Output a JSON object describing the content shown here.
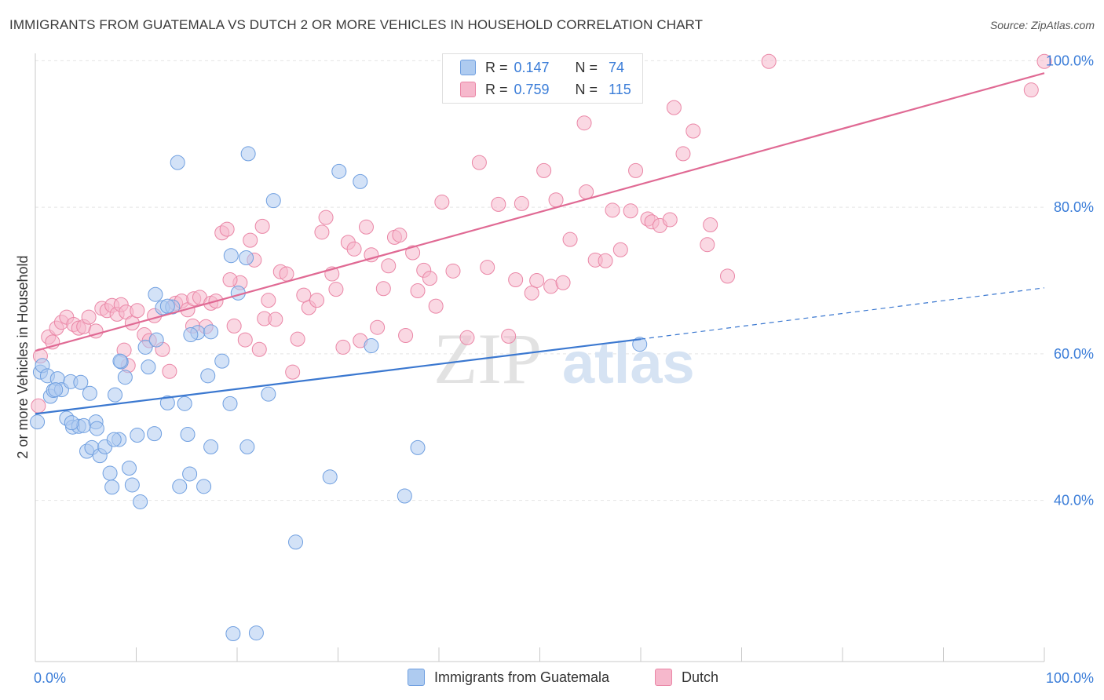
{
  "title": "IMMIGRANTS FROM GUATEMALA VS DUTCH 2 OR MORE VEHICLES IN HOUSEHOLD CORRELATION CHART",
  "source": "Source: ZipAtlas.com",
  "watermark": {
    "zip": "ZIP",
    "atlas": "atlas"
  },
  "colors": {
    "blue_fill": "#aecbf0",
    "blue_stroke": "#6f9fe0",
    "blue_line": "#3b78d0",
    "pink_fill": "#f6b8cc",
    "pink_stroke": "#ea86a6",
    "pink_line": "#e06a94",
    "tick_label": "#3b7dd8",
    "grid": "#e4e4e4"
  },
  "stats": [
    {
      "series": "Immigrants from Guatemala",
      "r_label": "R =",
      "r_value": "0.147",
      "n_label": "N =",
      "n_value": "74"
    },
    {
      "series": "Dutch",
      "r_label": "R =",
      "r_value": "0.759",
      "n_label": "N =",
      "n_value": "115"
    }
  ],
  "chart_data": {
    "type": "scatter",
    "title": "IMMIGRANTS FROM GUATEMALA VS DUTCH 2 OR MORE VEHICLES IN HOUSEHOLD CORRELATION CHART",
    "xlabel": "",
    "ylabel": "2 or more Vehicles in Household",
    "x_tick_labels": [
      "0.0%",
      "100.0%"
    ],
    "y_tick_labels": [
      "40.0%",
      "60.0%",
      "80.0%",
      "100.0%"
    ],
    "xlim": [
      0,
      100
    ],
    "ylim": [
      18,
      101
    ],
    "grid": true,
    "legend_position": "bottom-center",
    "series": [
      {
        "name": "Immigrants from Guatemala",
        "trend": {
          "solid": [
            [
              0,
              51.8
            ],
            [
              60,
              62
            ]
          ],
          "dashed": [
            [
              60,
              62
            ],
            [
              100,
              69
            ]
          ]
        },
        "points": [
          [
            0.2,
            50.7
          ],
          [
            0.5,
            57.5
          ],
          [
            0.7,
            58.4
          ],
          [
            1.2,
            57.0
          ],
          [
            1.5,
            54.2
          ],
          [
            1.8,
            55.0
          ],
          [
            2.2,
            56.6
          ],
          [
            2.6,
            55.1
          ],
          [
            3.1,
            51.2
          ],
          [
            3.5,
            56.2
          ],
          [
            3.7,
            50.0
          ],
          [
            4.3,
            50.1
          ],
          [
            4.5,
            56.1
          ],
          [
            4.8,
            50.2
          ],
          [
            5.1,
            46.7
          ],
          [
            5.4,
            54.6
          ],
          [
            5.6,
            47.2
          ],
          [
            6.0,
            50.7
          ],
          [
            6.1,
            49.8
          ],
          [
            6.4,
            46.1
          ],
          [
            6.9,
            47.3
          ],
          [
            7.4,
            43.7
          ],
          [
            7.6,
            41.8
          ],
          [
            7.9,
            54.4
          ],
          [
            8.3,
            48.3
          ],
          [
            8.5,
            58.9
          ],
          [
            8.9,
            56.8
          ],
          [
            9.3,
            44.4
          ],
          [
            9.6,
            42.1
          ],
          [
            10.1,
            48.9
          ],
          [
            10.4,
            39.8
          ],
          [
            11.2,
            58.2
          ],
          [
            11.8,
            49.1
          ],
          [
            11.9,
            68.1
          ],
          [
            12.6,
            66.3
          ],
          [
            13.1,
            53.3
          ],
          [
            13.6,
            66.4
          ],
          [
            14.1,
            86.1
          ],
          [
            14.3,
            41.9
          ],
          [
            14.8,
            53.2
          ],
          [
            15.1,
            49.0
          ],
          [
            15.3,
            43.6
          ],
          [
            16.1,
            62.9
          ],
          [
            16.7,
            41.9
          ],
          [
            17.1,
            57.0
          ],
          [
            17.4,
            47.3
          ],
          [
            18.5,
            59.0
          ],
          [
            19.3,
            53.2
          ],
          [
            19.4,
            73.4
          ],
          [
            19.6,
            21.8
          ],
          [
            20.1,
            68.3
          ],
          [
            20.9,
            73.1
          ],
          [
            21.0,
            47.3
          ],
          [
            21.1,
            87.3
          ],
          [
            21.9,
            21.9
          ],
          [
            23.1,
            54.5
          ],
          [
            23.6,
            80.9
          ],
          [
            25.8,
            34.3
          ],
          [
            29.2,
            43.2
          ],
          [
            30.1,
            84.9
          ],
          [
            32.2,
            83.5
          ],
          [
            33.3,
            61.1
          ],
          [
            36.6,
            40.6
          ],
          [
            37.9,
            47.2
          ],
          [
            59.9,
            61.3
          ],
          [
            8.4,
            59.0
          ],
          [
            10.9,
            60.9
          ],
          [
            12.0,
            61.9
          ],
          [
            15.4,
            62.6
          ],
          [
            13.1,
            66.5
          ],
          [
            3.6,
            50.6
          ],
          [
            2.0,
            55.1
          ],
          [
            7.8,
            48.3
          ],
          [
            17.4,
            63.0
          ]
        ]
      },
      {
        "name": "Dutch",
        "trend": {
          "solid": [
            [
              0,
              60.4
            ],
            [
              100,
              98.3
            ]
          ]
        },
        "points": [
          [
            0.3,
            52.9
          ],
          [
            0.5,
            59.7
          ],
          [
            1.3,
            62.3
          ],
          [
            1.7,
            61.6
          ],
          [
            2.1,
            63.5
          ],
          [
            2.6,
            64.3
          ],
          [
            3.1,
            65.0
          ],
          [
            3.8,
            64.0
          ],
          [
            4.3,
            63.5
          ],
          [
            4.8,
            63.7
          ],
          [
            5.3,
            65.0
          ],
          [
            6.0,
            63.1
          ],
          [
            6.6,
            66.2
          ],
          [
            7.1,
            65.9
          ],
          [
            7.6,
            66.6
          ],
          [
            8.1,
            65.4
          ],
          [
            8.5,
            66.7
          ],
          [
            9.0,
            65.7
          ],
          [
            9.6,
            64.2
          ],
          [
            10.1,
            65.9
          ],
          [
            10.8,
            62.6
          ],
          [
            11.3,
            61.8
          ],
          [
            11.8,
            65.2
          ],
          [
            12.6,
            60.6
          ],
          [
            13.3,
            57.6
          ],
          [
            13.9,
            66.9
          ],
          [
            14.5,
            67.2
          ],
          [
            15.1,
            66.0
          ],
          [
            15.7,
            67.5
          ],
          [
            16.3,
            67.7
          ],
          [
            16.9,
            63.7
          ],
          [
            17.4,
            66.9
          ],
          [
            17.9,
            67.2
          ],
          [
            18.5,
            76.5
          ],
          [
            19.0,
            77.0
          ],
          [
            19.7,
            63.8
          ],
          [
            20.3,
            69.7
          ],
          [
            20.8,
            61.9
          ],
          [
            21.3,
            75.5
          ],
          [
            21.7,
            72.8
          ],
          [
            22.2,
            60.6
          ],
          [
            22.7,
            64.8
          ],
          [
            23.1,
            67.3
          ],
          [
            23.8,
            64.7
          ],
          [
            24.3,
            71.2
          ],
          [
            24.9,
            70.9
          ],
          [
            25.5,
            57.5
          ],
          [
            26.0,
            62.0
          ],
          [
            26.6,
            68.0
          ],
          [
            27.1,
            66.3
          ],
          [
            27.9,
            67.3
          ],
          [
            28.4,
            76.6
          ],
          [
            28.8,
            78.6
          ],
          [
            29.4,
            70.9
          ],
          [
            29.8,
            68.8
          ],
          [
            30.5,
            60.9
          ],
          [
            31.0,
            75.2
          ],
          [
            31.6,
            74.3
          ],
          [
            32.2,
            61.8
          ],
          [
            32.8,
            77.3
          ],
          [
            33.3,
            73.5
          ],
          [
            33.9,
            63.6
          ],
          [
            34.5,
            68.9
          ],
          [
            35.0,
            72.0
          ],
          [
            35.6,
            75.9
          ],
          [
            36.1,
            76.2
          ],
          [
            36.7,
            62.5
          ],
          [
            37.4,
            73.8
          ],
          [
            37.9,
            68.6
          ],
          [
            38.5,
            71.4
          ],
          [
            39.1,
            70.3
          ],
          [
            39.7,
            66.5
          ],
          [
            40.3,
            80.7
          ],
          [
            41.4,
            71.3
          ],
          [
            42.3,
            96.3
          ],
          [
            42.8,
            62.2
          ],
          [
            44.0,
            86.1
          ],
          [
            44.8,
            71.8
          ],
          [
            45.9,
            80.4
          ],
          [
            46.9,
            62.4
          ],
          [
            47.6,
            70.1
          ],
          [
            48.2,
            80.5
          ],
          [
            49.2,
            68.3
          ],
          [
            49.7,
            70.0
          ],
          [
            50.4,
            85.0
          ],
          [
            51.1,
            69.2
          ],
          [
            51.6,
            81.0
          ],
          [
            52.3,
            69.7
          ],
          [
            53.0,
            75.6
          ],
          [
            54.4,
            91.5
          ],
          [
            54.6,
            82.1
          ],
          [
            55.5,
            72.8
          ],
          [
            56.5,
            72.7
          ],
          [
            57.2,
            79.6
          ],
          [
            58.0,
            74.2
          ],
          [
            59.0,
            79.5
          ],
          [
            59.5,
            85.0
          ],
          [
            60.7,
            78.4
          ],
          [
            61.1,
            78.0
          ],
          [
            61.9,
            77.5
          ],
          [
            62.9,
            78.3
          ],
          [
            63.3,
            93.6
          ],
          [
            64.2,
            87.3
          ],
          [
            65.2,
            90.4
          ],
          [
            66.6,
            74.9
          ],
          [
            66.9,
            77.6
          ],
          [
            68.6,
            70.6
          ],
          [
            72.7,
            99.9
          ],
          [
            98.7,
            96.0
          ],
          [
            100.0,
            99.9
          ],
          [
            22.5,
            77.4
          ],
          [
            19.3,
            70.1
          ],
          [
            9.2,
            58.4
          ],
          [
            8.8,
            60.5
          ],
          [
            15.6,
            63.8
          ]
        ]
      }
    ]
  }
}
